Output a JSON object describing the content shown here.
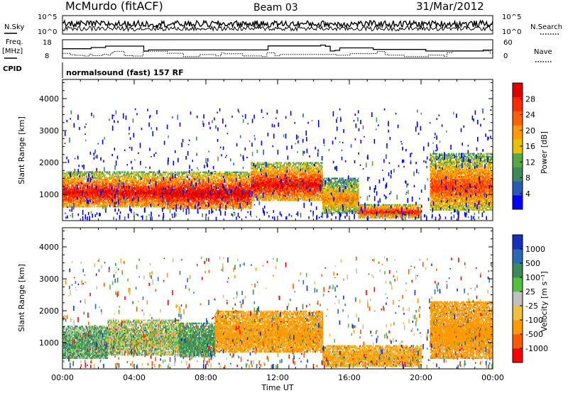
{
  "header": {
    "station": "McMurdo (fitACF)",
    "beam": "Beam 03",
    "date": "31/Mar/2012"
  },
  "top_panels": {
    "noise_left_label": "N.Sky",
    "noise_left_ticks": [
      "10^5",
      "10^0"
    ],
    "noise_right_label": "N.Search",
    "noise_right_ticks": [
      "10^5",
      "10^0"
    ],
    "freq_label_1": "Freq.",
    "freq_label_2": "[MHz]",
    "freq_ticks": [
      "18",
      "8"
    ],
    "nave_label": "Nave",
    "nave_ticks": [
      "60",
      "0"
    ],
    "cpid_label": "CPID",
    "cpid_text": "normalsound (fast) 157 RF"
  },
  "colors": {
    "power_scale": [
      "#0000ff",
      "#2a5ab8",
      "#3c8a5a",
      "#55a844",
      "#e8c000",
      "#ff9a00",
      "#ff6000",
      "#ff2a00",
      "#e00000"
    ],
    "velocity_scale": [
      "#ff0000",
      "#ff5a00",
      "#ff9a00",
      "#f0c040",
      "#c0c0c0",
      "#55c040",
      "#3c8a5a",
      "#2a6ab8",
      "#1530c0"
    ],
    "ground_scatter": "#a8a8a8"
  },
  "chart_data": [
    {
      "type": "heatmap",
      "name": "power",
      "xlabel": "Time UT",
      "ylabel": "Slant Range [km]",
      "xlim": [
        0,
        24
      ],
      "ylim": [
        180,
        4600
      ],
      "yticks": [
        "1000",
        "2000",
        "3000",
        "4000"
      ],
      "colorbar_label": "Power [dB]",
      "colorbar_ticks": [
        "4",
        "8",
        "12",
        "16",
        "20",
        "24",
        "28"
      ],
      "colorbar_range": [
        0,
        30
      ],
      "echo_regions": [
        {
          "t_start": 0.0,
          "t_end": 5.5,
          "range_low": 600,
          "range_high": 1700,
          "peak_power": 28
        },
        {
          "t_start": 5.5,
          "t_end": 10.5,
          "range_low": 550,
          "range_high": 1700,
          "peak_power": 30
        },
        {
          "t_start": 10.5,
          "t_end": 14.5,
          "range_low": 800,
          "range_high": 2000,
          "peak_power": 28
        },
        {
          "t_start": 14.5,
          "t_end": 16.5,
          "range_low": 400,
          "range_high": 1500,
          "peak_power": 20
        },
        {
          "t_start": 16.5,
          "t_end": 20.0,
          "range_low": 250,
          "range_high": 700,
          "peak_power": 26
        },
        {
          "t_start": 20.5,
          "t_end": 24.0,
          "range_low": 500,
          "range_high": 2300,
          "peak_power": 24
        }
      ]
    },
    {
      "type": "heatmap",
      "name": "velocity",
      "xlabel": "Time UT",
      "ylabel": "Slant Range [km]",
      "xlim": [
        0,
        24
      ],
      "ylim": [
        180,
        4600
      ],
      "yticks": [
        "1000",
        "2000",
        "3000",
        "4000"
      ],
      "xticks": [
        "00:00",
        "04:00",
        "08:00",
        "12:00",
        "16:00",
        "20:00",
        "00:00"
      ],
      "colorbar_label": "Velocity [m s⁻¹]",
      "colorbar_ticks": [
        "-1000",
        "-500",
        "-100",
        "-25",
        "25",
        "100",
        "500",
        "1000"
      ],
      "echo_regions": [
        {
          "t_start": 0.0,
          "t_end": 2.5,
          "range_low": 500,
          "range_high": 1500,
          "velocity": 100
        },
        {
          "t_start": 2.5,
          "t_end": 6.5,
          "range_low": 600,
          "range_high": 1700,
          "velocity": 25
        },
        {
          "t_start": 6.5,
          "t_end": 8.5,
          "range_low": 550,
          "range_high": 1600,
          "velocity": 150
        },
        {
          "t_start": 8.5,
          "t_end": 14.5,
          "range_low": 700,
          "range_high": 2000,
          "velocity": -200
        },
        {
          "t_start": 14.5,
          "t_end": 20.0,
          "range_low": 250,
          "range_high": 900,
          "velocity": -150
        },
        {
          "t_start": 20.5,
          "t_end": 24.0,
          "range_low": 500,
          "range_high": 2300,
          "velocity": -300
        }
      ]
    }
  ]
}
